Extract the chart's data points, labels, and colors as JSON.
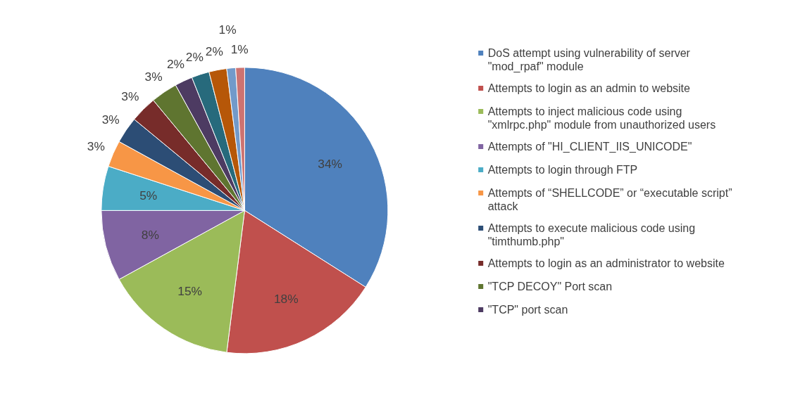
{
  "chart_data": {
    "type": "pie",
    "categories": [
      "DoS attempt using vulnerability of server \"mod_rpaf\" module",
      "Attempts to login as an admin to website",
      "Attempts to inject malicious code using \"xmlrpc.php\" module from unauthorized users",
      "Attempts of \"HI_CLIENT_IIS_UNICODE\"",
      "Attempts to login through FTP",
      "Attempts of “SHELLCODE” or “executable script” attack",
      "Attempts to execute malicious code using \"timthumb.php\"",
      "Attempts to login as an administrator to website",
      "\"TCP DECOY\" Port scan",
      "\"TCP\" port scan",
      null,
      null,
      null,
      null
    ],
    "values": [
      34,
      18,
      15,
      8,
      5,
      3,
      3,
      3,
      3,
      2,
      2,
      2,
      1,
      1
    ],
    "colors": [
      "#4f81bd",
      "#c0504d",
      "#9bbb59",
      "#8064a2",
      "#4bacc6",
      "#f79646",
      "#2c4d75",
      "#772c2a",
      "#5f7530",
      "#4d3b62",
      "#276a7c",
      "#b65708",
      "#729aca",
      "#cd7371"
    ],
    "value_labels": [
      "34%",
      "18%",
      "15%",
      "8%",
      "5%",
      "3%",
      "3%",
      "3%",
      "3%",
      "2%",
      "2%",
      "2%",
      "1%",
      "1%"
    ],
    "legend": "right"
  }
}
